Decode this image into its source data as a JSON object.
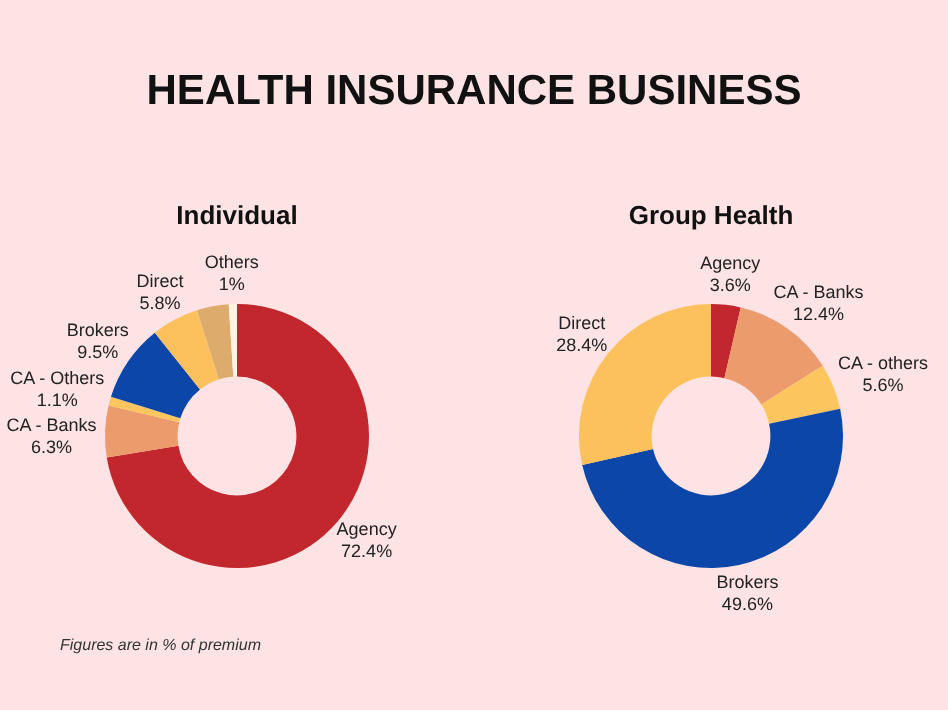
{
  "chart_data": [
    {
      "type": "donut",
      "title": "HEALTH INSURANCE BUSINESS",
      "subtitle": "Individual",
      "categories": [
        "Agency",
        "CA - Banks",
        "CA - Others",
        "Brokers",
        "Direct",
        null,
        "Others"
      ],
      "values": [
        72.4,
        6.3,
        1.1,
        9.5,
        5.8,
        3.9,
        1
      ],
      "value_labels": [
        "72.4%",
        "6.3%",
        "1.1%",
        "9.5%",
        "5.8%",
        null,
        "1%"
      ],
      "colors": [
        "#c1272d",
        "#ec9b6c",
        "#fcc55e",
        "#0b46a8",
        "#fcc05c",
        "#ddab6c",
        "#fff3e6"
      ],
      "annotations": [
        "Figures are in % of premium"
      ]
    },
    {
      "type": "donut",
      "subtitle": "Group Health",
      "categories": [
        "Agency",
        "CA - Banks",
        "CA - others",
        "Brokers",
        "Direct"
      ],
      "values": [
        3.6,
        12.4,
        5.6,
        49.6,
        28.4
      ],
      "value_labels": [
        "3.6%",
        "12.4%",
        "5.6%",
        "49.6%",
        "28.4%"
      ],
      "colors": [
        "#c1272d",
        "#ec9b6c",
        "#fcc55e",
        "#0b46a8",
        "#fcc05c"
      ]
    }
  ]
}
